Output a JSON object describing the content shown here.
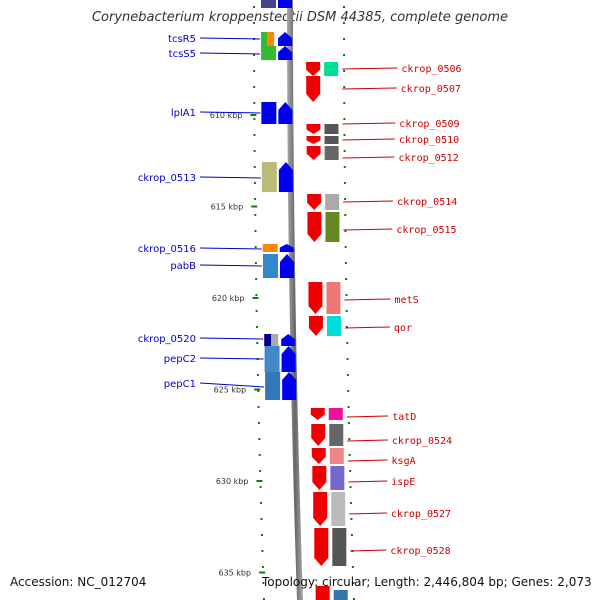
{
  "title": "Corynebacterium kroppenstedtii DSM 44385, complete genome",
  "footer": {
    "accession": "Accession: NC_012704",
    "topology": "Topology: circular; Length: 2,446,804 bp; Genes: 2,073"
  },
  "colors": {
    "left_label": "#0000cc",
    "right_label": "#cc0000",
    "tick": "#117711",
    "backbone": "#888888"
  },
  "kbp_markers": [
    {
      "label": "610 kbp",
      "position_kbp": 610
    },
    {
      "label": "615 kbp",
      "position_kbp": 615
    },
    {
      "label": "620 kbp",
      "position_kbp": 620
    },
    {
      "label": "625 kbp",
      "position_kbp": 625
    },
    {
      "label": "630 kbp",
      "position_kbp": 630
    },
    {
      "label": "635 kbp",
      "position_kbp": 635
    }
  ],
  "left_genes": [
    {
      "label": "tcsR5",
      "cog_color": "#33bb33",
      "cog_color2": "#ff8800"
    },
    {
      "label": "tcsS5",
      "cog_color": "#33bb33",
      "cog_color2": "#33bb33"
    },
    {
      "label": "lplA1",
      "cog_color": "#0000ee",
      "cog_color2": "#0000ee"
    },
    {
      "label": "ckrop_0513",
      "cog_color": "#bbbb77",
      "cog_color2": "#bbbb77"
    },
    {
      "label": "ckrop_0516",
      "cog_color": "#ff8800",
      "cog_color2": "#ff8800"
    },
    {
      "label": "pabB",
      "cog_color": "#3388cc",
      "cog_color2": "#3388cc"
    },
    {
      "label": "ckrop_0520",
      "cog_color": "#000088",
      "cog_color2": "#aaaaaa"
    },
    {
      "label": "pepC2",
      "cog_color": "#4488cc",
      "cog_color2": "#4488cc"
    },
    {
      "label": "pepC1",
      "cog_color": "#3377bb",
      "cog_color2": "#3377bb"
    }
  ],
  "right_genes": [
    {
      "label": "ckrop_0506",
      "cog_color": "#00dd99"
    },
    {
      "label": "ckrop_0507",
      "cog_color": ""
    },
    {
      "label": "ckrop_0509",
      "cog_color": "#555555"
    },
    {
      "label": "ckrop_0510",
      "cog_color": "#555555"
    },
    {
      "label": "ckrop_0512",
      "cog_color": "#666666"
    },
    {
      "label": "ckrop_0514",
      "cog_color": "#aaaaaa"
    },
    {
      "label": "ckrop_0515",
      "cog_color": "#668822"
    },
    {
      "label": "metS",
      "cog_color": "#ee7777"
    },
    {
      "label": "qor",
      "cog_color": "#00dddd"
    },
    {
      "label": "tatD",
      "cog_color": "#ee1199"
    },
    {
      "label": "ckrop_0524",
      "cog_color": "#666666"
    },
    {
      "label": "ksgA",
      "cog_color": "#ee8888"
    },
    {
      "label": "ispE",
      "cog_color": "#7766cc"
    },
    {
      "label": "ckrop_0527",
      "cog_color": "#bbbbbb"
    },
    {
      "label": "ckrop_0528",
      "cog_color": "#555555"
    }
  ]
}
